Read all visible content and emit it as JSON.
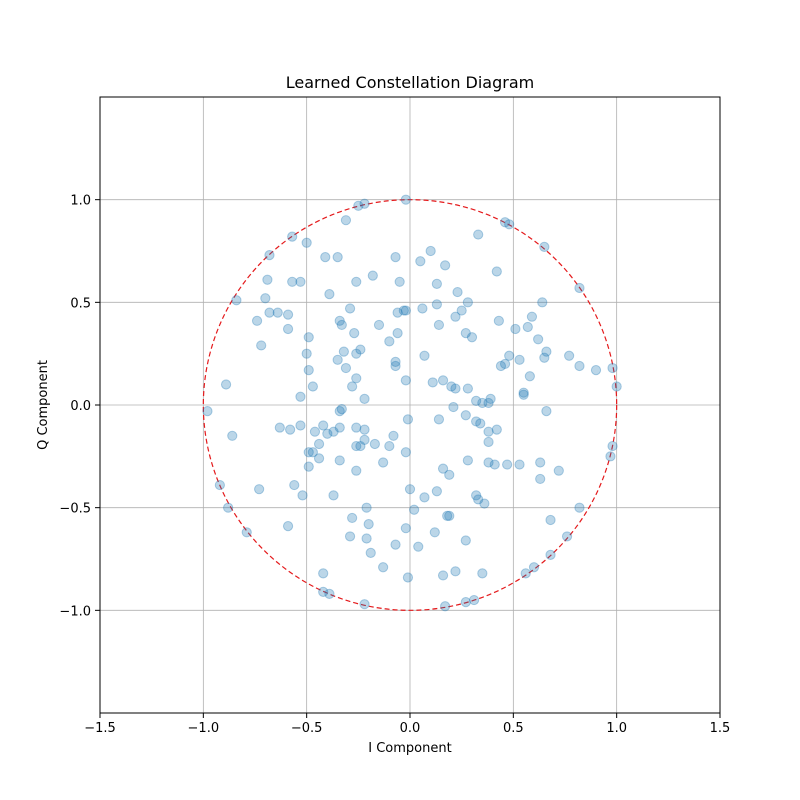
{
  "chart_data": {
    "type": "scatter",
    "title": "Learned Constellation Diagram",
    "xlabel": "I Component",
    "ylabel": "Q Component",
    "xlim": [
      -1.5,
      1.5
    ],
    "ylim": [
      -1.5,
      1.5
    ],
    "xticks": [
      -1.5,
      -1.0,
      -0.5,
      0.0,
      0.5,
      1.0,
      1.5
    ],
    "yticks": [
      -1.0,
      -0.5,
      0.0,
      0.5,
      1.0
    ],
    "xtick_labels": [
      "−1.5",
      "−1.0",
      "−0.5",
      "0.0",
      "0.5",
      "1.0",
      "1.5"
    ],
    "ytick_labels": [
      "−1.0",
      "−0.5",
      "0.0",
      "0.5",
      "1.0"
    ],
    "grid": true,
    "point_color": "#1f77b4",
    "circle_color": "#e41a1c",
    "unit_circle": {
      "center": [
        0,
        0
      ],
      "radius": 1.0,
      "style": "dashed"
    },
    "points": [
      [
        -0.02,
        1.0
      ],
      [
        -0.22,
        0.98
      ],
      [
        -0.25,
        0.97
      ],
      [
        -0.31,
        0.9
      ],
      [
        -0.57,
        0.82
      ],
      [
        -0.5,
        0.79
      ],
      [
        -0.68,
        0.73
      ],
      [
        -0.41,
        0.72
      ],
      [
        -0.35,
        0.72
      ],
      [
        -0.07,
        0.72
      ],
      [
        0.1,
        0.75
      ],
      [
        0.05,
        0.7
      ],
      [
        0.17,
        0.68
      ],
      [
        0.33,
        0.83
      ],
      [
        0.46,
        0.89
      ],
      [
        0.48,
        0.88
      ],
      [
        0.65,
        0.77
      ],
      [
        0.42,
        0.65
      ],
      [
        -0.69,
        0.61
      ],
      [
        -0.57,
        0.6
      ],
      [
        -0.53,
        0.6
      ],
      [
        -0.26,
        0.6
      ],
      [
        -0.18,
        0.63
      ],
      [
        -0.05,
        0.6
      ],
      [
        0.13,
        0.59
      ],
      [
        0.23,
        0.55
      ],
      [
        0.28,
        0.5
      ],
      [
        0.13,
        0.49
      ],
      [
        -0.84,
        0.51
      ],
      [
        -0.7,
        0.52
      ],
      [
        -0.39,
        0.54
      ],
      [
        -0.03,
        0.46
      ],
      [
        -0.02,
        0.46
      ],
      [
        0.06,
        0.47
      ],
      [
        0.25,
        0.46
      ],
      [
        0.22,
        0.43
      ],
      [
        0.64,
        0.5
      ],
      [
        0.59,
        0.43
      ],
      [
        0.82,
        0.57
      ],
      [
        -0.74,
        0.41
      ],
      [
        -0.68,
        0.45
      ],
      [
        -0.64,
        0.45
      ],
      [
        -0.59,
        0.44
      ],
      [
        -0.59,
        0.37
      ],
      [
        -0.34,
        0.41
      ],
      [
        -0.33,
        0.39
      ],
      [
        -0.29,
        0.47
      ],
      [
        -0.15,
        0.39
      ],
      [
        -0.06,
        0.45
      ],
      [
        0.14,
        0.39
      ],
      [
        0.43,
        0.41
      ],
      [
        0.51,
        0.37
      ],
      [
        0.57,
        0.38
      ],
      [
        -0.49,
        0.33
      ],
      [
        -0.27,
        0.35
      ],
      [
        -0.06,
        0.35
      ],
      [
        -0.1,
        0.31
      ],
      [
        0.27,
        0.35
      ],
      [
        0.3,
        0.33
      ],
      [
        0.62,
        0.32
      ],
      [
        -0.72,
        0.29
      ],
      [
        -0.5,
        0.25
      ],
      [
        -0.32,
        0.26
      ],
      [
        -0.26,
        0.25
      ],
      [
        -0.24,
        0.27
      ],
      [
        -0.07,
        0.21
      ],
      [
        0.07,
        0.24
      ],
      [
        0.48,
        0.24
      ],
      [
        0.53,
        0.22
      ],
      [
        0.66,
        0.26
      ],
      [
        0.65,
        0.23
      ],
      [
        0.46,
        0.2
      ],
      [
        0.44,
        0.19
      ],
      [
        -0.35,
        0.22
      ],
      [
        -0.31,
        0.18
      ],
      [
        -0.07,
        0.19
      ],
      [
        0.77,
        0.24
      ],
      [
        0.82,
        0.19
      ],
      [
        0.9,
        0.17
      ],
      [
        0.98,
        0.18
      ],
      [
        -0.49,
        0.17
      ],
      [
        -0.47,
        0.09
      ],
      [
        -0.26,
        0.13
      ],
      [
        -0.28,
        0.09
      ],
      [
        -0.02,
        0.12
      ],
      [
        0.11,
        0.11
      ],
      [
        0.16,
        0.12
      ],
      [
        0.2,
        0.09
      ],
      [
        0.22,
        0.08
      ],
      [
        0.28,
        0.08
      ],
      [
        0.58,
        0.14
      ],
      [
        0.55,
        0.06
      ],
      [
        0.55,
        0.05
      ],
      [
        1.0,
        0.09
      ],
      [
        -0.53,
        0.04
      ],
      [
        -0.22,
        0.03
      ],
      [
        0.32,
        0.02
      ],
      [
        0.35,
        0.01
      ],
      [
        0.38,
        0.01
      ],
      [
        0.39,
        0.03
      ],
      [
        -0.89,
        0.1
      ],
      [
        -0.98,
        -0.03
      ],
      [
        -0.34,
        -0.03
      ],
      [
        -0.33,
        -0.02
      ],
      [
        0.21,
        -0.01
      ],
      [
        -0.01,
        -0.07
      ],
      [
        0.14,
        -0.07
      ],
      [
        0.27,
        -0.05
      ],
      [
        0.32,
        -0.08
      ],
      [
        0.34,
        -0.09
      ],
      [
        0.38,
        -0.13
      ],
      [
        0.42,
        -0.12
      ],
      [
        0.66,
        -0.03
      ],
      [
        -0.86,
        -0.15
      ],
      [
        -0.63,
        -0.11
      ],
      [
        -0.58,
        -0.12
      ],
      [
        -0.53,
        -0.1
      ],
      [
        -0.46,
        -0.13
      ],
      [
        -0.42,
        -0.1
      ],
      [
        -0.4,
        -0.14
      ],
      [
        -0.37,
        -0.13
      ],
      [
        -0.34,
        -0.11
      ],
      [
        -0.26,
        -0.11
      ],
      [
        -0.22,
        -0.12
      ],
      [
        -0.22,
        -0.17
      ],
      [
        -0.17,
        -0.19
      ],
      [
        -0.08,
        -0.15
      ],
      [
        -0.44,
        -0.19
      ],
      [
        -0.26,
        -0.2
      ],
      [
        -0.24,
        -0.2
      ],
      [
        -0.1,
        -0.2
      ],
      [
        0.38,
        -0.18
      ],
      [
        -0.49,
        -0.23
      ],
      [
        -0.47,
        -0.23
      ],
      [
        -0.44,
        -0.26
      ],
      [
        -0.34,
        -0.27
      ],
      [
        -0.02,
        -0.23
      ],
      [
        0.28,
        -0.27
      ],
      [
        0.38,
        -0.28
      ],
      [
        0.41,
        -0.29
      ],
      [
        0.47,
        -0.29
      ],
      [
        0.53,
        -0.29
      ],
      [
        0.63,
        -0.28
      ],
      [
        0.72,
        -0.32
      ],
      [
        0.97,
        -0.25
      ],
      [
        0.98,
        -0.2
      ],
      [
        -0.49,
        -0.3
      ],
      [
        -0.26,
        -0.32
      ],
      [
        -0.13,
        -0.28
      ],
      [
        0.16,
        -0.31
      ],
      [
        0.19,
        -0.34
      ],
      [
        0.63,
        -0.36
      ],
      [
        -0.92,
        -0.39
      ],
      [
        -0.73,
        -0.41
      ],
      [
        -0.56,
        -0.39
      ],
      [
        -0.52,
        -0.44
      ],
      [
        -0.37,
        -0.44
      ],
      [
        0.0,
        -0.41
      ],
      [
        0.07,
        -0.45
      ],
      [
        0.13,
        -0.42
      ],
      [
        0.32,
        -0.44
      ],
      [
        0.33,
        -0.46
      ],
      [
        0.36,
        -0.48
      ],
      [
        -0.88,
        -0.5
      ],
      [
        -0.21,
        -0.5
      ],
      [
        0.02,
        -0.51
      ],
      [
        0.18,
        -0.54
      ],
      [
        0.19,
        -0.54
      ],
      [
        0.82,
        -0.5
      ],
      [
        -0.79,
        -0.62
      ],
      [
        -0.59,
        -0.59
      ],
      [
        -0.28,
        -0.55
      ],
      [
        -0.2,
        -0.58
      ],
      [
        -0.02,
        -0.6
      ],
      [
        0.12,
        -0.62
      ],
      [
        0.68,
        -0.56
      ],
      [
        0.76,
        -0.64
      ],
      [
        -0.29,
        -0.64
      ],
      [
        -0.21,
        -0.65
      ],
      [
        -0.19,
        -0.72
      ],
      [
        -0.07,
        -0.68
      ],
      [
        0.04,
        -0.69
      ],
      [
        0.27,
        -0.66
      ],
      [
        0.68,
        -0.73
      ],
      [
        -0.13,
        -0.79
      ],
      [
        -0.42,
        -0.82
      ],
      [
        -0.01,
        -0.84
      ],
      [
        0.16,
        -0.83
      ],
      [
        0.22,
        -0.81
      ],
      [
        0.35,
        -0.82
      ],
      [
        0.56,
        -0.82
      ],
      [
        0.6,
        -0.79
      ],
      [
        -0.42,
        -0.91
      ],
      [
        -0.39,
        -0.92
      ],
      [
        -0.22,
        -0.97
      ],
      [
        0.17,
        -0.98
      ],
      [
        0.27,
        -0.96
      ],
      [
        0.31,
        -0.95
      ]
    ]
  }
}
